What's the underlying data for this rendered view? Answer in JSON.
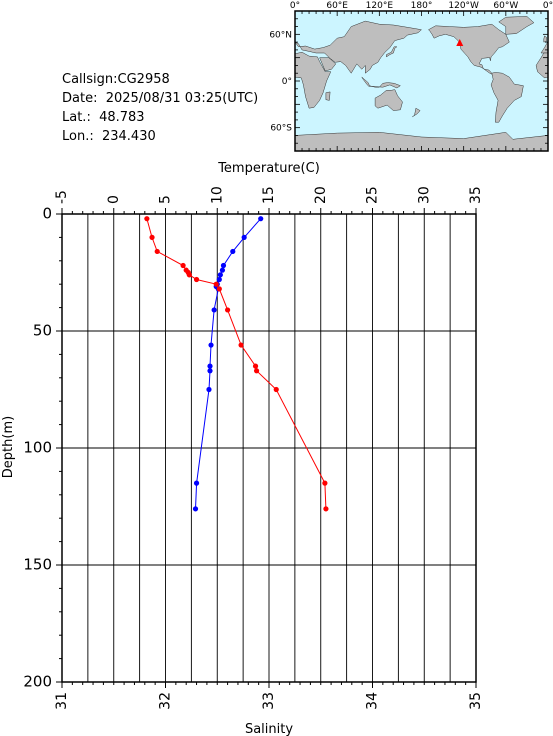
{
  "info": {
    "callsign": "Callsign:CG2958",
    "date": "Date:  2025/08/31 03:25(UTC)",
    "lat": "Lat.:  48.783",
    "lon": "Lon.:  234.430"
  },
  "map": {
    "lon_ticks": [
      "0°",
      "60°E",
      "120°E",
      "180°",
      "120°W",
      "60°W",
      "0°"
    ],
    "lat_ticks": [
      "60°N",
      "0°",
      "60°S"
    ],
    "ocean_color": "#ccf5ff",
    "land_color": "#bebebe",
    "marker_color": "#ff0000",
    "station": {
      "lon": 234.43,
      "lat": 48.783
    }
  },
  "chart_data": {
    "type": "line",
    "xlabel_top": "Temperature(C)",
    "xlabel_bottom": "Salinity",
    "ylabel": "Depth(m)",
    "temperature_range": [
      -5,
      35
    ],
    "temperature_ticks": [
      -5,
      0,
      5,
      10,
      15,
      20,
      25,
      30,
      35
    ],
    "salinity_range": [
      31,
      35
    ],
    "salinity_ticks": [
      31,
      32,
      33,
      34,
      35
    ],
    "depth_range": [
      0,
      200
    ],
    "depth_ticks": [
      0,
      50,
      100,
      150,
      200
    ],
    "grid": true,
    "series": [
      {
        "color": "#0000ff",
        "axis": "temperature",
        "points": [
          {
            "depth": 2,
            "value": 14.2
          },
          {
            "depth": 10,
            "value": 12.6
          },
          {
            "depth": 16,
            "value": 11.5
          },
          {
            "depth": 22,
            "value": 10.6
          },
          {
            "depth": 24,
            "value": 10.5
          },
          {
            "depth": 26,
            "value": 10.3
          },
          {
            "depth": 28,
            "value": 10.2
          },
          {
            "depth": 30,
            "value": 10.0
          },
          {
            "depth": 31,
            "value": 9.9
          },
          {
            "depth": 32,
            "value": 10.1
          },
          {
            "depth": 41,
            "value": 9.7
          },
          {
            "depth": 56,
            "value": 9.4
          },
          {
            "depth": 65,
            "value": 9.3
          },
          {
            "depth": 67,
            "value": 9.3
          },
          {
            "depth": 75,
            "value": 9.2
          },
          {
            "depth": 115,
            "value": 8.0
          },
          {
            "depth": 126,
            "value": 7.9
          }
        ]
      },
      {
        "color": "#ff0000",
        "axis": "salinity",
        "points": [
          {
            "depth": 2,
            "value": 31.82
          },
          {
            "depth": 10,
            "value": 31.87
          },
          {
            "depth": 16,
            "value": 31.92
          },
          {
            "depth": 22,
            "value": 32.17
          },
          {
            "depth": 24,
            "value": 32.2
          },
          {
            "depth": 25,
            "value": 32.22
          },
          {
            "depth": 26,
            "value": 32.23
          },
          {
            "depth": 28,
            "value": 32.3
          },
          {
            "depth": 30,
            "value": 32.49
          },
          {
            "depth": 32,
            "value": 32.52
          },
          {
            "depth": 41,
            "value": 32.6
          },
          {
            "depth": 56,
            "value": 32.73
          },
          {
            "depth": 65,
            "value": 32.87
          },
          {
            "depth": 67,
            "value": 32.88
          },
          {
            "depth": 75,
            "value": 33.07
          },
          {
            "depth": 115,
            "value": 33.54
          },
          {
            "depth": 126,
            "value": 33.55
          }
        ]
      }
    ]
  }
}
